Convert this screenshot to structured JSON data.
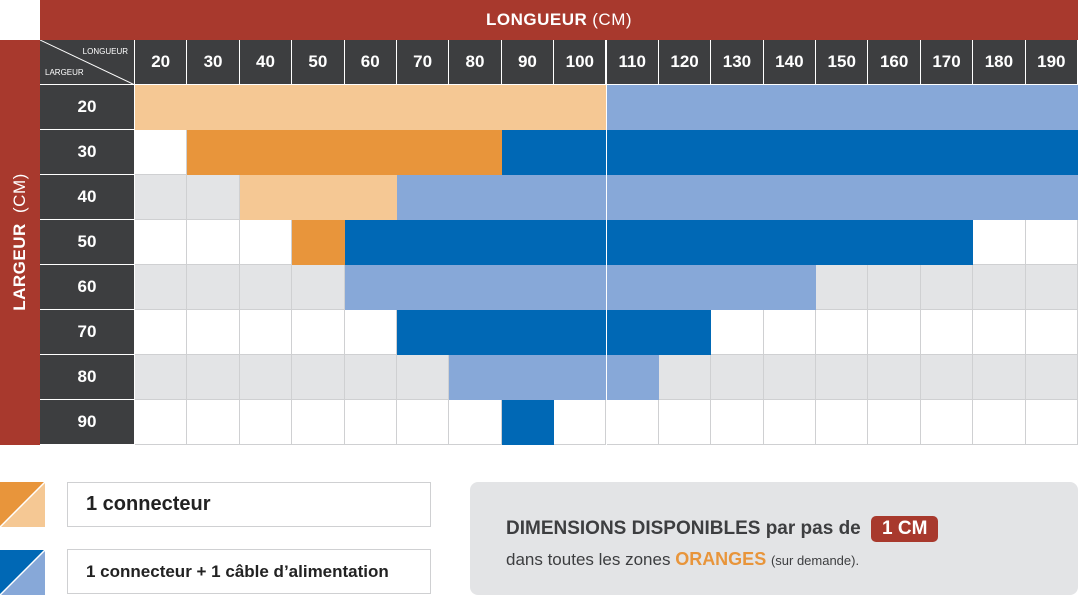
{
  "header": {
    "title_bold": "LONGUEUR",
    "title_unit": "(CM)"
  },
  "side_header": {
    "title_bold": "LARGEUR",
    "title_unit": "(CM)"
  },
  "corner": {
    "top_label": "LONGUEUR",
    "bottom_label": "LARGEUR"
  },
  "columns": [
    "20",
    "30",
    "40",
    "50",
    "60",
    "70",
    "80",
    "90",
    "100",
    "110",
    "120",
    "130",
    "140",
    "150",
    "160",
    "170",
    "180",
    "190"
  ],
  "rows": [
    {
      "label": "20",
      "cells": [
        "o1",
        "o1",
        "o1",
        "o1",
        "o1",
        "o1",
        "o1",
        "o1",
        "o1",
        "b1",
        "b1",
        "b1",
        "b1",
        "b1",
        "b1",
        "b1",
        "b1",
        "b1"
      ]
    },
    {
      "label": "30",
      "cells": [
        "w",
        "o2",
        "o2",
        "o2",
        "o2",
        "o2",
        "o2",
        "b2",
        "b2",
        "b2",
        "b2",
        "b2",
        "b2",
        "b2",
        "b2",
        "b2",
        "b2",
        "b2"
      ]
    },
    {
      "label": "40",
      "cells": [
        "g",
        "g",
        "o1",
        "o1",
        "o1",
        "b1",
        "b1",
        "b1",
        "b1",
        "b1",
        "b1",
        "b1",
        "b1",
        "b1",
        "b1",
        "b1",
        "b1",
        "b1"
      ]
    },
    {
      "label": "50",
      "cells": [
        "w",
        "w",
        "w",
        "o2",
        "b2",
        "b2",
        "b2",
        "b2",
        "b2",
        "b2",
        "b2",
        "b2",
        "b2",
        "b2",
        "b2",
        "b2",
        "w",
        "w"
      ]
    },
    {
      "label": "60",
      "cells": [
        "g",
        "g",
        "g",
        "g",
        "b1",
        "b1",
        "b1",
        "b1",
        "b1",
        "b1",
        "b1",
        "b1",
        "b1",
        "g",
        "g",
        "g",
        "g",
        "g"
      ]
    },
    {
      "label": "70",
      "cells": [
        "w",
        "w",
        "w",
        "w",
        "w",
        "b2",
        "b2",
        "b2",
        "b2",
        "b2",
        "b2",
        "w",
        "w",
        "w",
        "w",
        "w",
        "w",
        "w"
      ]
    },
    {
      "label": "80",
      "cells": [
        "g",
        "g",
        "g",
        "g",
        "g",
        "g",
        "b1",
        "b1",
        "b1",
        "b1",
        "g",
        "g",
        "g",
        "g",
        "g",
        "g",
        "g",
        "g"
      ]
    },
    {
      "label": "90",
      "cells": [
        "w",
        "w",
        "w",
        "w",
        "w",
        "w",
        "w",
        "b2",
        "w",
        "w",
        "w",
        "w",
        "w",
        "w",
        "w",
        "w",
        "w",
        "w"
      ]
    }
  ],
  "legend": [
    {
      "label": "1 connecteur",
      "icon": "orange-diagonal-icon"
    },
    {
      "label": "1 connecteur + 1 câble d’alimentation",
      "icon": "blue-diagonal-icon"
    }
  ],
  "info": {
    "line1_text": "DIMENSIONS DISPONIBLES par pas de",
    "badge": "1 CM",
    "line2_prefix": "dans toutes les zones",
    "line2_highlight": "ORANGES",
    "line2_suffix": "(sur demande)."
  },
  "colors": {
    "banner": "#a8392d",
    "header_dark": "#3d3e40",
    "orange_light": "#f5c894",
    "orange_dark": "#e8953b",
    "blue_light": "#87a8d8",
    "blue_dark": "#0068b5",
    "grey": "#e3e4e6"
  }
}
